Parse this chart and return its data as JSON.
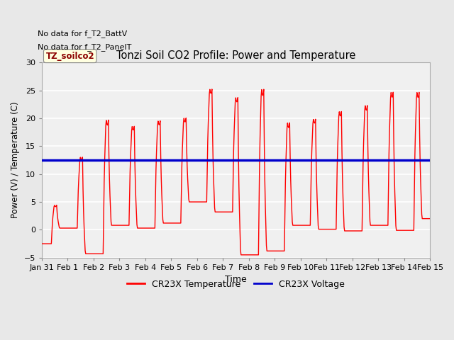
{
  "title": "Tonzi Soil CO2 Profile: Power and Temperature",
  "ylabel": "Power (V) / Temperature (C)",
  "xlabel": "Time",
  "ylim": [
    -5,
    30
  ],
  "yticks": [
    -5,
    0,
    5,
    10,
    15,
    20,
    25,
    30
  ],
  "annotation_lines": [
    "No data for f_T2_BattV",
    "No data for f_T2_PanelT"
  ],
  "station_label": "TZ_soilco2",
  "x_tick_labels": [
    "Jan 31",
    "Feb 1",
    "Feb 2",
    "Feb 3",
    "Feb 4",
    "Feb 5",
    "Feb 6",
    "Feb 7",
    "Feb 8",
    "Feb 9",
    "Feb 10",
    "Feb 11",
    "Feb 12",
    "Feb 13",
    "Feb 14",
    "Feb 15"
  ],
  "voltage_value": 12.5,
  "temp_color": "#ff0000",
  "voltage_color": "#0000cc",
  "bg_color": "#e8e8e8",
  "plot_bg_color": "#f0f0f0",
  "legend_temp": "CR23X Temperature",
  "legend_volt": "CR23X Voltage",
  "day_peaks": [
    4.5,
    13.2,
    20.0,
    18.8,
    19.8,
    20.3,
    25.5,
    24.0,
    25.6,
    19.5,
    20.1,
    21.5,
    22.6,
    25.0,
    25.0,
    2.2
  ],
  "day_valleys": [
    -2.5,
    0.3,
    -4.3,
    0.8,
    0.3,
    1.2,
    5.0,
    3.2,
    -4.5,
    -3.8,
    0.8,
    0.1,
    -0.2,
    0.8,
    -0.1,
    2.0
  ],
  "figsize": [
    6.4,
    4.8
  ],
  "dpi": 100
}
